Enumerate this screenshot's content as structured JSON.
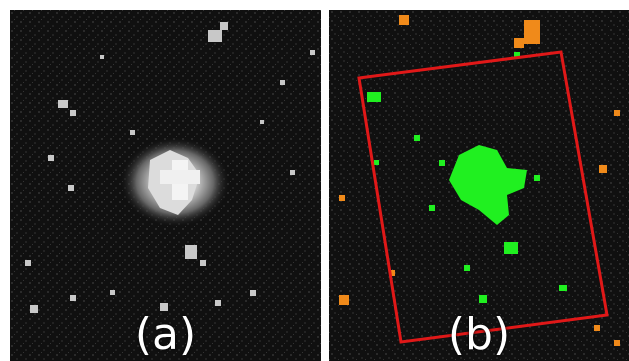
{
  "panels": [
    {
      "label": "(a)"
    },
    {
      "label": "(b)"
    }
  ],
  "colors": {
    "background": "#0e0e0e",
    "city_lights": "#e8e8e8",
    "detected_urban": "#20f020",
    "outside_lights": "#f08a1a",
    "boundary": "#e01818"
  }
}
